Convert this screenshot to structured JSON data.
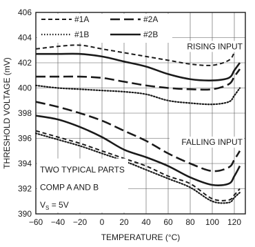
{
  "chart_data": {
    "type": "line",
    "xlabel": "TEMPERATURE (°C)",
    "ylabel": "THRESHOLD VOLTAGE (mV)",
    "xlim": [
      -60,
      130
    ],
    "ylim": [
      390,
      406
    ],
    "xticks": [
      -60,
      -40,
      -20,
      0,
      20,
      40,
      60,
      80,
      100,
      120
    ],
    "yticks": [
      390,
      392,
      394,
      396,
      398,
      400,
      402,
      404,
      406
    ],
    "x_tick_labels": [
      "−60",
      "−40",
      "−20",
      "0",
      "20",
      "40",
      "60",
      "80",
      "100",
      "120"
    ],
    "y_tick_labels": [
      "390",
      "392",
      "394",
      "396",
      "398",
      "400",
      "402",
      "404",
      "406"
    ],
    "grid": true,
    "legend_position": "top-left",
    "legend_entries": [
      "#1A",
      "#2A",
      "#1B",
      "#2B"
    ],
    "annotations": {
      "rising": "RISING INPUT",
      "falling": "FALLING INPUT",
      "note_line1": "TWO TYPICAL PARTS",
      "note_line2": "COMP A AND B",
      "note_line3_main": "V",
      "note_line3_sub": "S",
      "note_line3_rest": " = 5V"
    },
    "series": [
      {
        "name": "#1A",
        "group": "rising",
        "style": "short-dash",
        "x": [
          -60,
          -40,
          -20,
          0,
          20,
          40,
          60,
          80,
          100,
          115,
          120,
          125
        ],
        "y": [
          403.1,
          403.3,
          403.4,
          403.1,
          402.8,
          402.5,
          402.2,
          401.9,
          401.8,
          402.2,
          402.8,
          403.5
        ]
      },
      {
        "name": "#2A",
        "group": "rising",
        "style": "long-dash",
        "x": [
          -60,
          -40,
          -20,
          0,
          20,
          40,
          60,
          80,
          100,
          115,
          120,
          125
        ],
        "y": [
          400.9,
          400.9,
          400.9,
          400.8,
          400.5,
          400.2,
          400.0,
          399.9,
          399.9,
          400.3,
          400.9,
          401.5
        ]
      },
      {
        "name": "#1B",
        "group": "rising",
        "style": "dotted",
        "x": [
          -60,
          -40,
          -20,
          0,
          20,
          40,
          60,
          80,
          100,
          115,
          120,
          125
        ],
        "y": [
          400.2,
          400.0,
          399.9,
          399.8,
          399.7,
          399.5,
          399.0,
          398.8,
          398.7,
          398.9,
          399.4,
          400.0
        ]
      },
      {
        "name": "#2B",
        "group": "rising",
        "style": "solid",
        "x": [
          -60,
          -40,
          -20,
          0,
          20,
          40,
          60,
          80,
          100,
          115,
          120,
          125
        ],
        "y": [
          402.7,
          402.7,
          402.7,
          402.5,
          402.1,
          401.7,
          401.1,
          400.7,
          400.6,
          400.8,
          401.4,
          402.0
        ]
      },
      {
        "name": "#1A",
        "group": "falling",
        "style": "short-dash",
        "x": [
          -60,
          -40,
          -20,
          0,
          20,
          40,
          60,
          80,
          100,
          115,
          120,
          125
        ],
        "y": [
          396.6,
          396.1,
          395.6,
          395.0,
          394.4,
          393.8,
          393.0,
          392.4,
          391.2,
          391.1,
          391.5,
          392.0
        ]
      },
      {
        "name": "#2A",
        "group": "falling",
        "style": "long-dash",
        "x": [
          -60,
          -40,
          -20,
          0,
          20,
          40,
          60,
          80,
          100,
          115,
          120,
          125
        ],
        "y": [
          398.9,
          398.5,
          398.0,
          397.4,
          396.6,
          395.8,
          394.8,
          394.0,
          393.4,
          393.7,
          394.3,
          395.0
        ]
      },
      {
        "name": "#1B",
        "group": "falling",
        "style": "dotted",
        "x": [
          -60,
          -40,
          -20,
          0,
          20,
          40,
          60,
          80,
          100,
          115,
          120,
          125
        ],
        "y": [
          396.4,
          395.9,
          395.4,
          394.8,
          394.2,
          393.5,
          392.8,
          392.1,
          391.0,
          390.9,
          391.3,
          391.7
        ]
      },
      {
        "name": "#2B",
        "group": "falling",
        "style": "solid",
        "x": [
          -60,
          -40,
          -20,
          0,
          20,
          40,
          60,
          80,
          100,
          115,
          120,
          125
        ],
        "y": [
          397.8,
          397.5,
          396.9,
          396.1,
          395.1,
          394.5,
          393.8,
          392.9,
          392.3,
          392.4,
          393.0,
          393.8
        ]
      }
    ]
  }
}
